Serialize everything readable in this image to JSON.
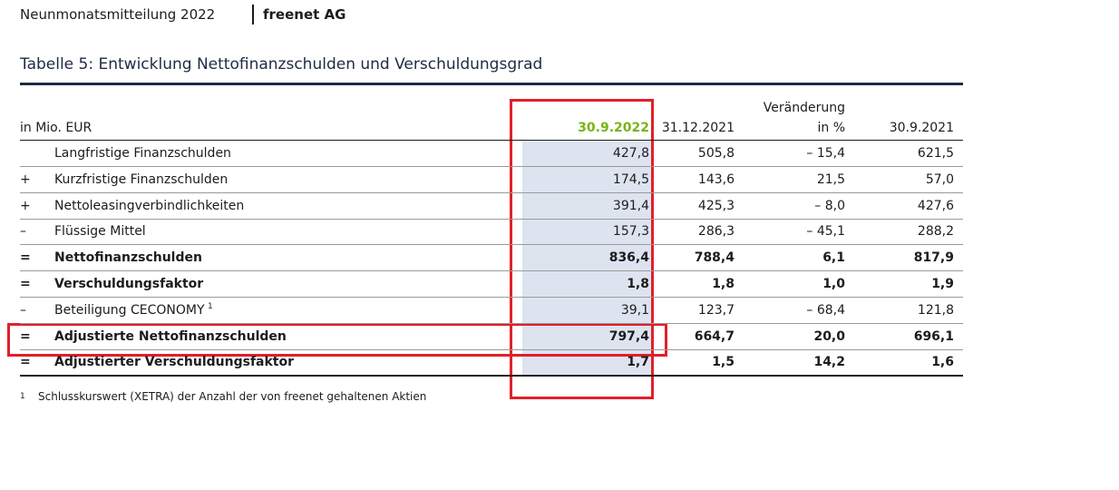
{
  "header": {
    "report": "Neunmonatsmitteilung 2022",
    "company": "freenet AG"
  },
  "table": {
    "title": "Tabelle 5: Entwicklung Nettofinanzschulden und Verschuldungsgrad",
    "unit": "in Mio. EUR",
    "columns": [
      [
        "30.9.2022"
      ],
      [
        "31.12.2021"
      ],
      [
        "Veränderung",
        "in %"
      ],
      [
        "30.9.2021"
      ]
    ],
    "rows": [
      {
        "sign": "",
        "label": "Langfristige Finanzschulden",
        "values": [
          "427,8",
          "505,8",
          "– 15,4",
          "621,5"
        ],
        "bold": false
      },
      {
        "sign": "+",
        "label": "Kurzfristige Finanzschulden",
        "values": [
          "174,5",
          "143,6",
          "21,5",
          "57,0"
        ],
        "bold": false
      },
      {
        "sign": "+",
        "label": "Nettoleasingverbindlichkeiten",
        "values": [
          "391,4",
          "425,3",
          "– 8,0",
          "427,6"
        ],
        "bold": false
      },
      {
        "sign": "–",
        "label": "Flüssige Mittel",
        "values": [
          "157,3",
          "286,3",
          "– 45,1",
          "288,2"
        ],
        "bold": false
      },
      {
        "sign": "=",
        "label": "Nettofinanzschulden",
        "values": [
          "836,4",
          "788,4",
          "6,1",
          "817,9"
        ],
        "bold": true
      },
      {
        "sign": "=",
        "label": "Verschuldungsfaktor",
        "values": [
          "1,8",
          "1,8",
          "1,0",
          "1,9"
        ],
        "bold": true
      },
      {
        "sign": "–",
        "label": "Beteiligung CECONOMY",
        "note": "1",
        "values": [
          "39,1",
          "123,7",
          "– 68,4",
          "121,8"
        ],
        "bold": false
      },
      {
        "sign": "=",
        "label": "Adjustierte Nettofinanzschulden",
        "values": [
          "797,4",
          "664,7",
          "20,0",
          "696,1"
        ],
        "bold": true
      },
      {
        "sign": "=",
        "label": "Adjustierter Verschuldungsfaktor",
        "values": [
          "1,7",
          "1,5",
          "14,2",
          "1,6"
        ],
        "bold": true
      }
    ],
    "footnote": {
      "marker": "1",
      "text": "Schlusskurswert (XETRA) der Anzahl der von freenet gehaltenen Aktien"
    }
  }
}
